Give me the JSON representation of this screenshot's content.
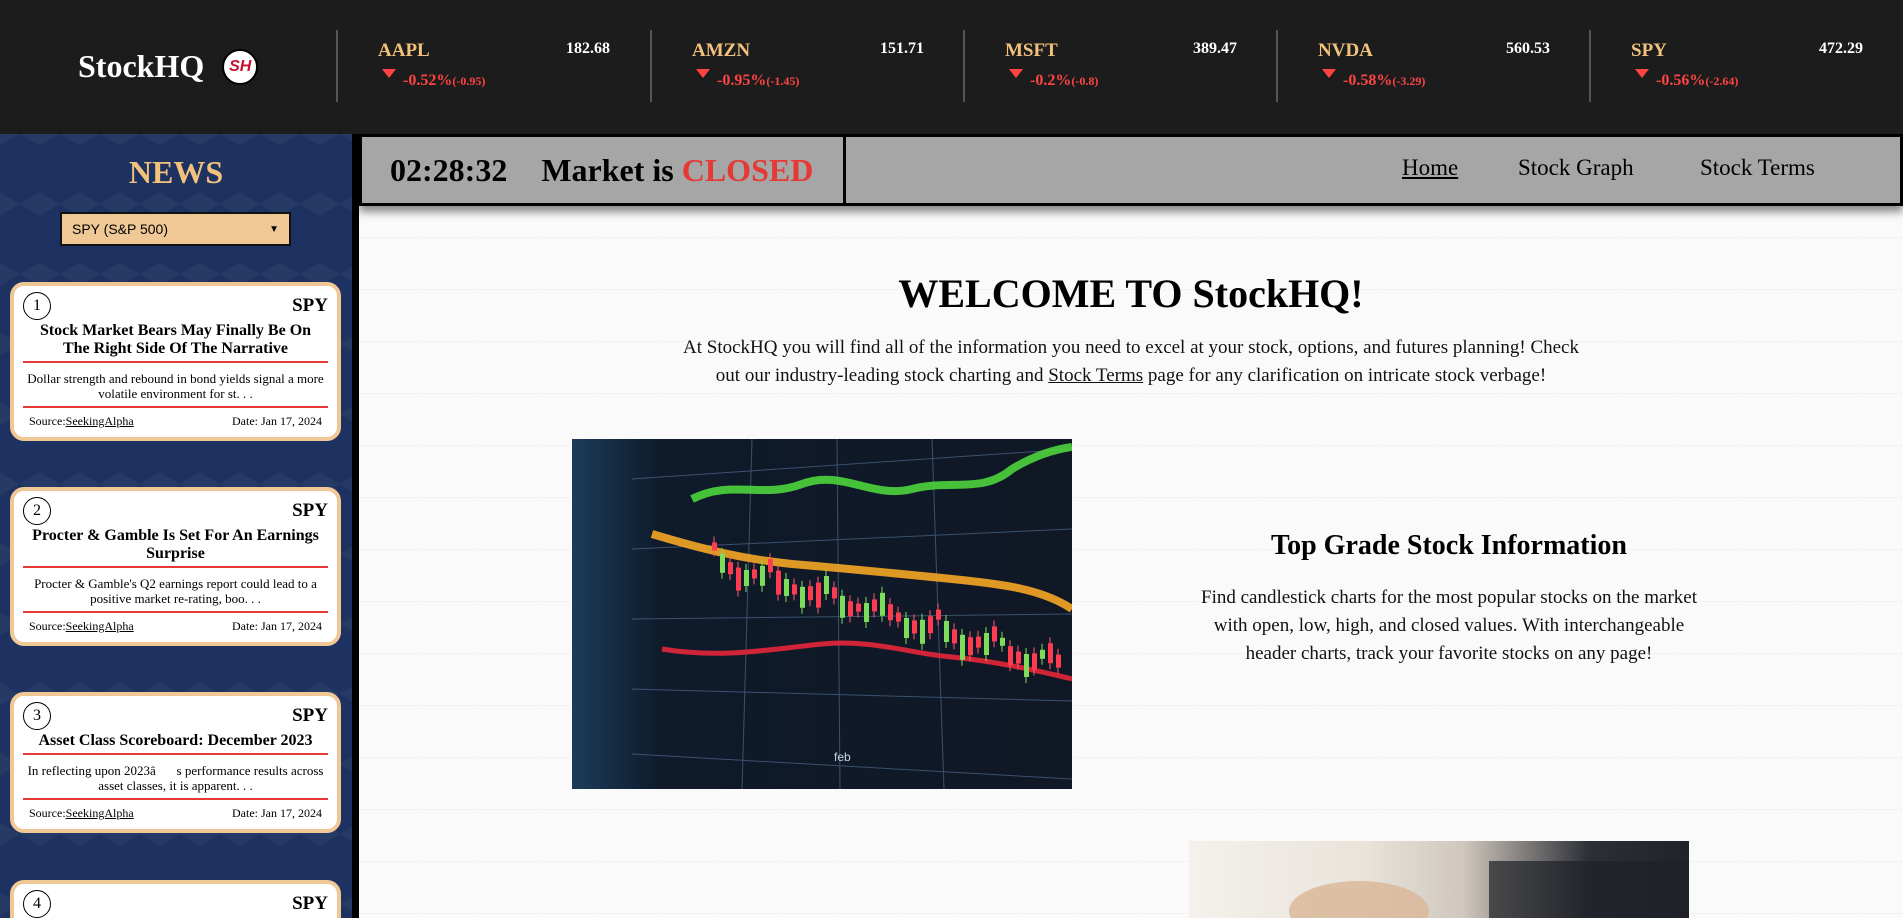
{
  "brand": {
    "name": "StockHQ",
    "logo_text": "SH"
  },
  "tickers": [
    {
      "symbol": "AAPL",
      "price": "182.68",
      "change_pct": "-0.52%",
      "change_abs": "(-0.95)"
    },
    {
      "symbol": "AMZN",
      "price": "151.71",
      "change_pct": "-0.95%",
      "change_abs": "(-1.45)"
    },
    {
      "symbol": "MSFT",
      "price": "389.47",
      "change_pct": "-0.2%",
      "change_abs": "(-0.8)"
    },
    {
      "symbol": "NVDA",
      "price": "560.53",
      "change_pct": "-0.58%",
      "change_abs": "(-3.29)"
    },
    {
      "symbol": "SPY",
      "price": "472.29",
      "change_pct": "-0.56%",
      "change_abs": "(-2.64)"
    }
  ],
  "sidebar": {
    "title": "NEWS",
    "select_value": "SPY (S&P 500)",
    "cards": [
      {
        "num": "1",
        "ticker": "SPY",
        "title": "Stock Market Bears May Finally Be On The Right Side Of The Narrative",
        "desc": "Dollar strength and rebound in bond yields signal a more volatile environment for st. . .",
        "source_label": "Source:",
        "source": "SeekingAlpha",
        "date": "Date: Jan 17, 2024"
      },
      {
        "num": "2",
        "ticker": "SPY",
        "title": "Procter & Gamble Is Set For An Earnings Surprise",
        "desc": "Procter & Gamble's Q2 earnings report could lead to a positive market re-rating, boo. . .",
        "source_label": "Source:",
        "source": "SeekingAlpha",
        "date": "Date: Jan 17, 2024"
      },
      {
        "num": "3",
        "ticker": "SPY",
        "title": "Asset Class Scoreboard: December 2023",
        "desc": "In reflecting upon 2023âs performance results across asset classes, it is apparent. . .",
        "source_label": "Source:",
        "source": "SeekingAlpha",
        "date": "Date: Jan 17, 2024"
      },
      {
        "num": "4",
        "ticker": "SPY"
      }
    ]
  },
  "nav": {
    "clock": "02:28:32",
    "market_prefix": "Market is",
    "market_state": "CLOSED",
    "links": [
      "Home",
      "Stock Graph",
      "Stock Terms"
    ]
  },
  "main": {
    "welcome_title": "WELCOME TO StockHQ!",
    "welcome_text_before": "At StockHQ you will find all of the information you need to excel at your stock, options, and futures planning! Check out our industry-leading stock charting and ",
    "welcome_link": "Stock Terms",
    "welcome_text_after": " page for any clarification on intricate stock verbage!",
    "feature_title": "Top Grade Stock Information",
    "feature_text": "Find candlestick charts for the most popular stocks on the market with open, low, high, and closed values. With interchangeable header charts, track your favorite stocks on any page!",
    "chart_axis_labels": [
      "feb"
    ]
  },
  "colors": {
    "accent": "#f2c27d",
    "negative": "#ff4444",
    "closed": "#e53935",
    "sidebar_bg": "#1d3260"
  }
}
